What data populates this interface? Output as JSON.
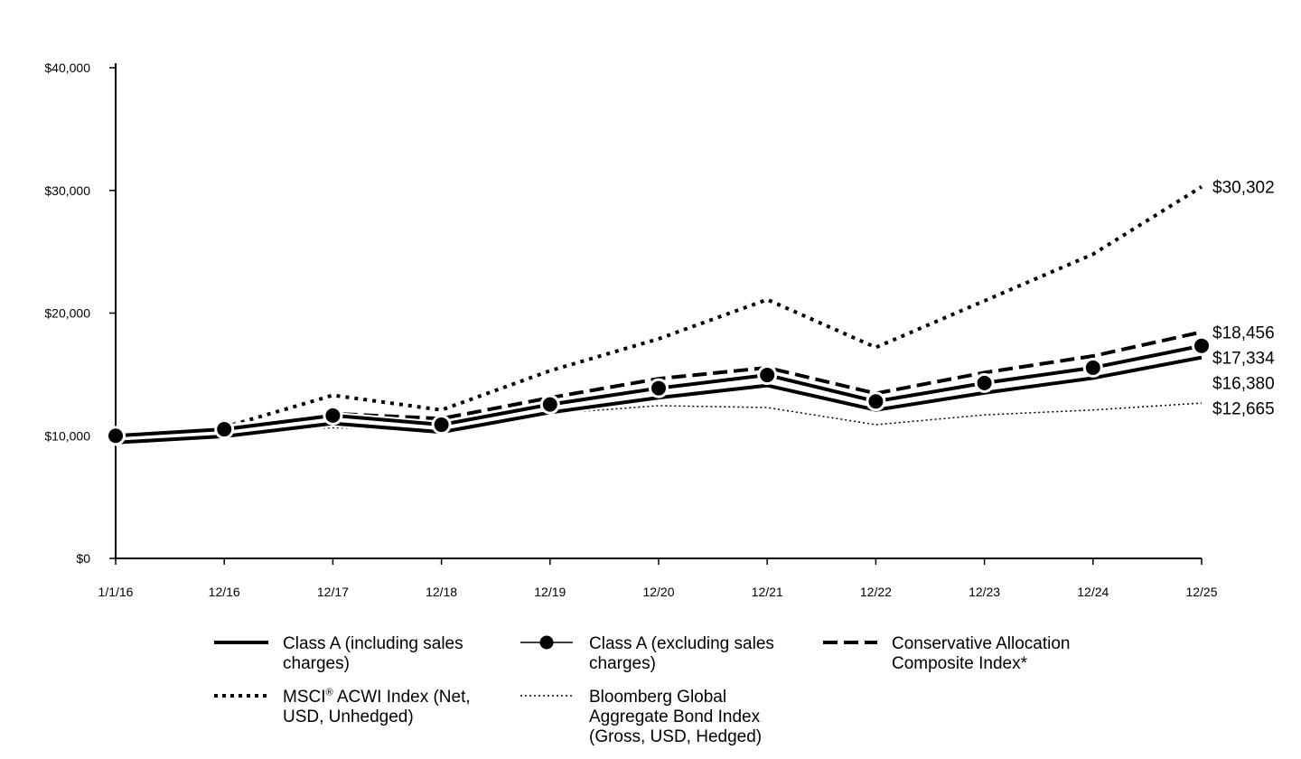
{
  "chart_data": {
    "type": "line",
    "x": [
      "1/1/16",
      "12/16",
      "12/17",
      "12/18",
      "12/19",
      "12/20",
      "12/21",
      "12/22",
      "12/23",
      "12/24",
      "12/25"
    ],
    "ylim": [
      0,
      40000
    ],
    "yticks": [
      0,
      10000,
      20000,
      30000,
      40000
    ],
    "ytick_labels": [
      "$0",
      "$10,000",
      "$20,000",
      "$30,000",
      "$40,000"
    ],
    "grid": false,
    "legend_position": "bottom",
    "series": [
      {
        "name": "Class A (including sales charges)",
        "style": "solid-thick",
        "values": [
          9450,
          9950,
          11000,
          10300,
          11900,
          13100,
          14100,
          12100,
          13500,
          14700,
          16380
        ],
        "end_label": "$16,380"
      },
      {
        "name": "Class A (excluding sales charges)",
        "style": "solid-markers",
        "values": [
          10000,
          10530,
          11650,
          10900,
          12550,
          13880,
          14950,
          12800,
          14300,
          15550,
          17334
        ],
        "end_label": "$17,334"
      },
      {
        "name": "Conservative Allocation Composite Index*",
        "style": "dashed",
        "values": [
          10000,
          10600,
          11800,
          11400,
          13100,
          14650,
          15550,
          13450,
          15150,
          16500,
          18456
        ],
        "end_label": "$18,456"
      },
      {
        "name": "MSCI® ACWI Index (Net, USD, Unhedged)",
        "legend_parts": [
          "MSCI",
          "®",
          " ACWI Index (Net, USD, Unhedged)"
        ],
        "style": "dotted-thick",
        "values": [
          10000,
          10700,
          13300,
          12100,
          15300,
          17900,
          21100,
          17200,
          21000,
          24800,
          30302
        ],
        "end_label": "$30,302"
      },
      {
        "name": "Bloomberg Global Aggregate Bond Index (Gross, USD, Hedged)",
        "style": "dotted-thin",
        "values": [
          10000,
          10400,
          10650,
          10550,
          11800,
          12450,
          12300,
          10900,
          11700,
          12100,
          12665
        ],
        "end_label": "$12,665"
      }
    ]
  }
}
